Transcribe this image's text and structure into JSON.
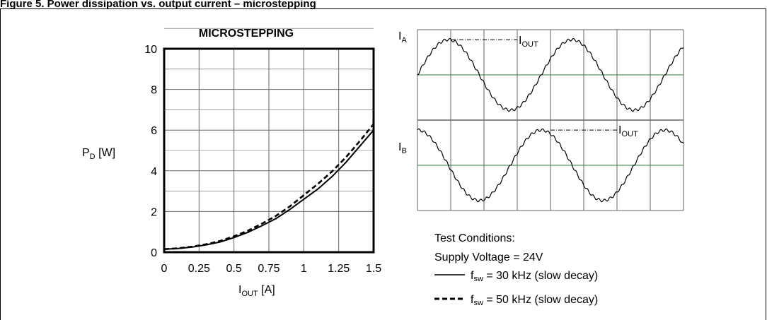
{
  "figure_heading": "Figure 5. Power dissipation vs. output current – microstepping",
  "chart_data": [
    {
      "type": "line",
      "title": "MICROSTEPPING",
      "xlabel": {
        "main": "I",
        "sub": "OUT",
        "unit": " [A]"
      },
      "ylabel": {
        "main": "P",
        "sub": "D",
        "unit": " [W]"
      },
      "xlim": [
        0,
        1.5
      ],
      "ylim": [
        0,
        10
      ],
      "x_ticks": [
        "0",
        "0.25",
        "0.5",
        "0.75",
        "1",
        "1.25",
        "1.5"
      ],
      "y_ticks": [
        "0",
        "2",
        "4",
        "6",
        "8",
        "10"
      ],
      "grid": true,
      "series": [
        {
          "style": "solid",
          "x": [
            0,
            0.1,
            0.2,
            0.3,
            0.4,
            0.5,
            0.6,
            0.7,
            0.8,
            0.9,
            1.0,
            1.1,
            1.2,
            1.3,
            1.4,
            1.5
          ],
          "y": [
            0.15,
            0.18,
            0.25,
            0.36,
            0.5,
            0.72,
            0.98,
            1.3,
            1.65,
            2.1,
            2.6,
            3.1,
            3.7,
            4.4,
            5.2,
            6.0
          ]
        },
        {
          "style": "dashed",
          "x": [
            0,
            0.1,
            0.2,
            0.3,
            0.4,
            0.5,
            0.6,
            0.7,
            0.8,
            0.9,
            1.0,
            1.1,
            1.2,
            1.3,
            1.4,
            1.5
          ],
          "y": [
            0.15,
            0.19,
            0.27,
            0.39,
            0.55,
            0.78,
            1.06,
            1.4,
            1.78,
            2.25,
            2.8,
            3.35,
            3.95,
            4.65,
            5.45,
            6.3
          ]
        }
      ]
    },
    {
      "type": "line",
      "description_labels": {
        "phase_a": {
          "main": "I",
          "sub": "A"
        },
        "phase_b": {
          "main": "I",
          "sub": "B"
        },
        "iout_a": {
          "main": "I",
          "sub": "OUT"
        },
        "iout_b": {
          "main": "I",
          "sub": "OUT"
        }
      },
      "grid": true,
      "grid_columns": 8,
      "grid_rows": 4,
      "series": [
        {
          "name_key": "phase_a",
          "waveform": "sine",
          "cycles": 2.15,
          "start_phase_deg": 0,
          "ripple": true
        },
        {
          "name_key": "phase_b",
          "waveform": "sine",
          "cycles": 2.15,
          "start_phase_deg": 90,
          "ripple": true
        }
      ]
    }
  ],
  "legend": {
    "test_conditions": "Test Conditions:",
    "supply": "Supply Voltage = 24V",
    "entries": [
      {
        "style": "solid",
        "main": "f",
        "sub": "sw",
        "text": " = 30 kHz (slow decay)"
      },
      {
        "style": "dashed",
        "main": "f",
        "sub": "sw",
        "text": " = 50 kHz (slow decay)"
      }
    ]
  },
  "colors": {
    "axis": "#000000",
    "grid_main": "#666666",
    "grid_wave_mid": "#2e7d32",
    "curve": "#000000"
  }
}
